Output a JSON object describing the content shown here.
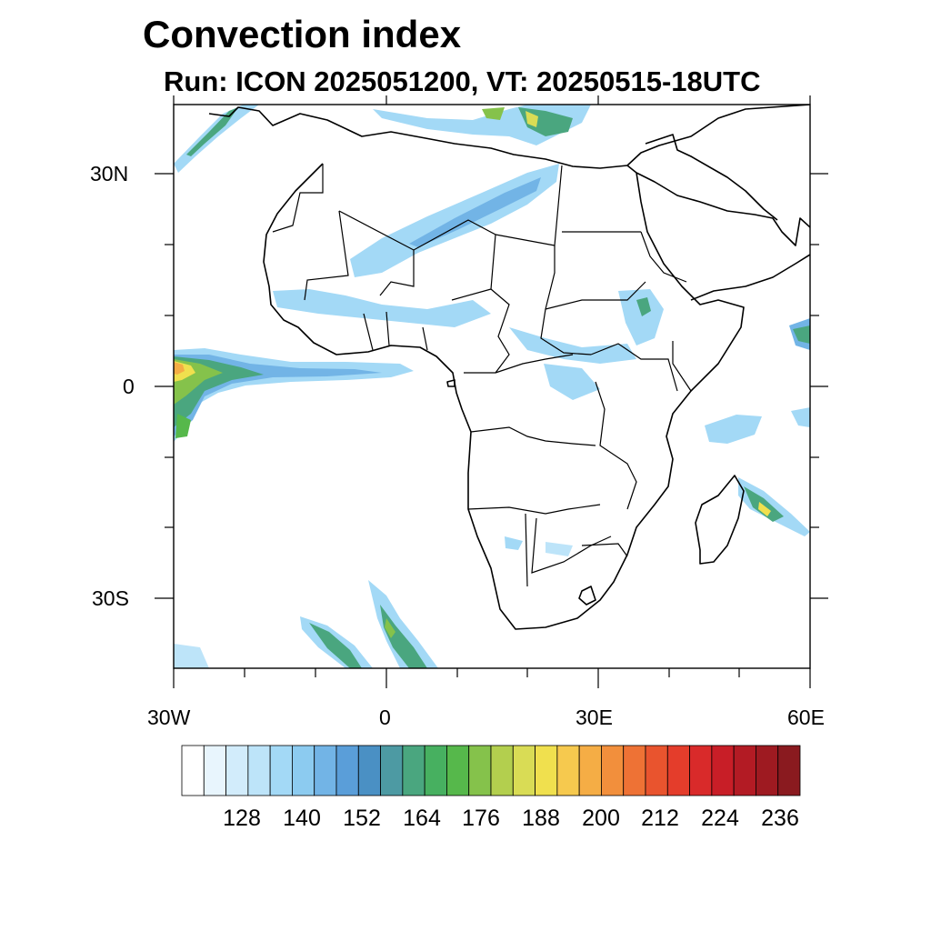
{
  "header": {
    "title": "Convection index",
    "subtitle": "Run: ICON 2025051200,  VT: 20250515-18UTC"
  },
  "map": {
    "lat_labels": [
      "30N",
      "0",
      "30S"
    ],
    "lon_labels": [
      "30W",
      "0",
      "30E",
      "60E"
    ]
  },
  "colorbar": {
    "colors": [
      "#ffffff",
      "#e8f5fd",
      "#d2ecfb",
      "#bde4f9",
      "#a3d9f6",
      "#8ccbf0",
      "#72b4e6",
      "#5a9ed9",
      "#4a90c4",
      "#4d9aa3",
      "#4aa67f",
      "#47b060",
      "#56b84b",
      "#85c24b",
      "#b3cf4e",
      "#d9dc55",
      "#f0e04e",
      "#f6c94e",
      "#f5ad45",
      "#f28f3c",
      "#ee7235",
      "#e9542e",
      "#e43d2b",
      "#d92a2a",
      "#c81e27",
      "#b31b24",
      "#9e1a21",
      "#8a1a1f"
    ],
    "labels": [
      "128",
      "140",
      "152",
      "164",
      "176",
      "188",
      "200",
      "212",
      "224",
      "236"
    ]
  }
}
